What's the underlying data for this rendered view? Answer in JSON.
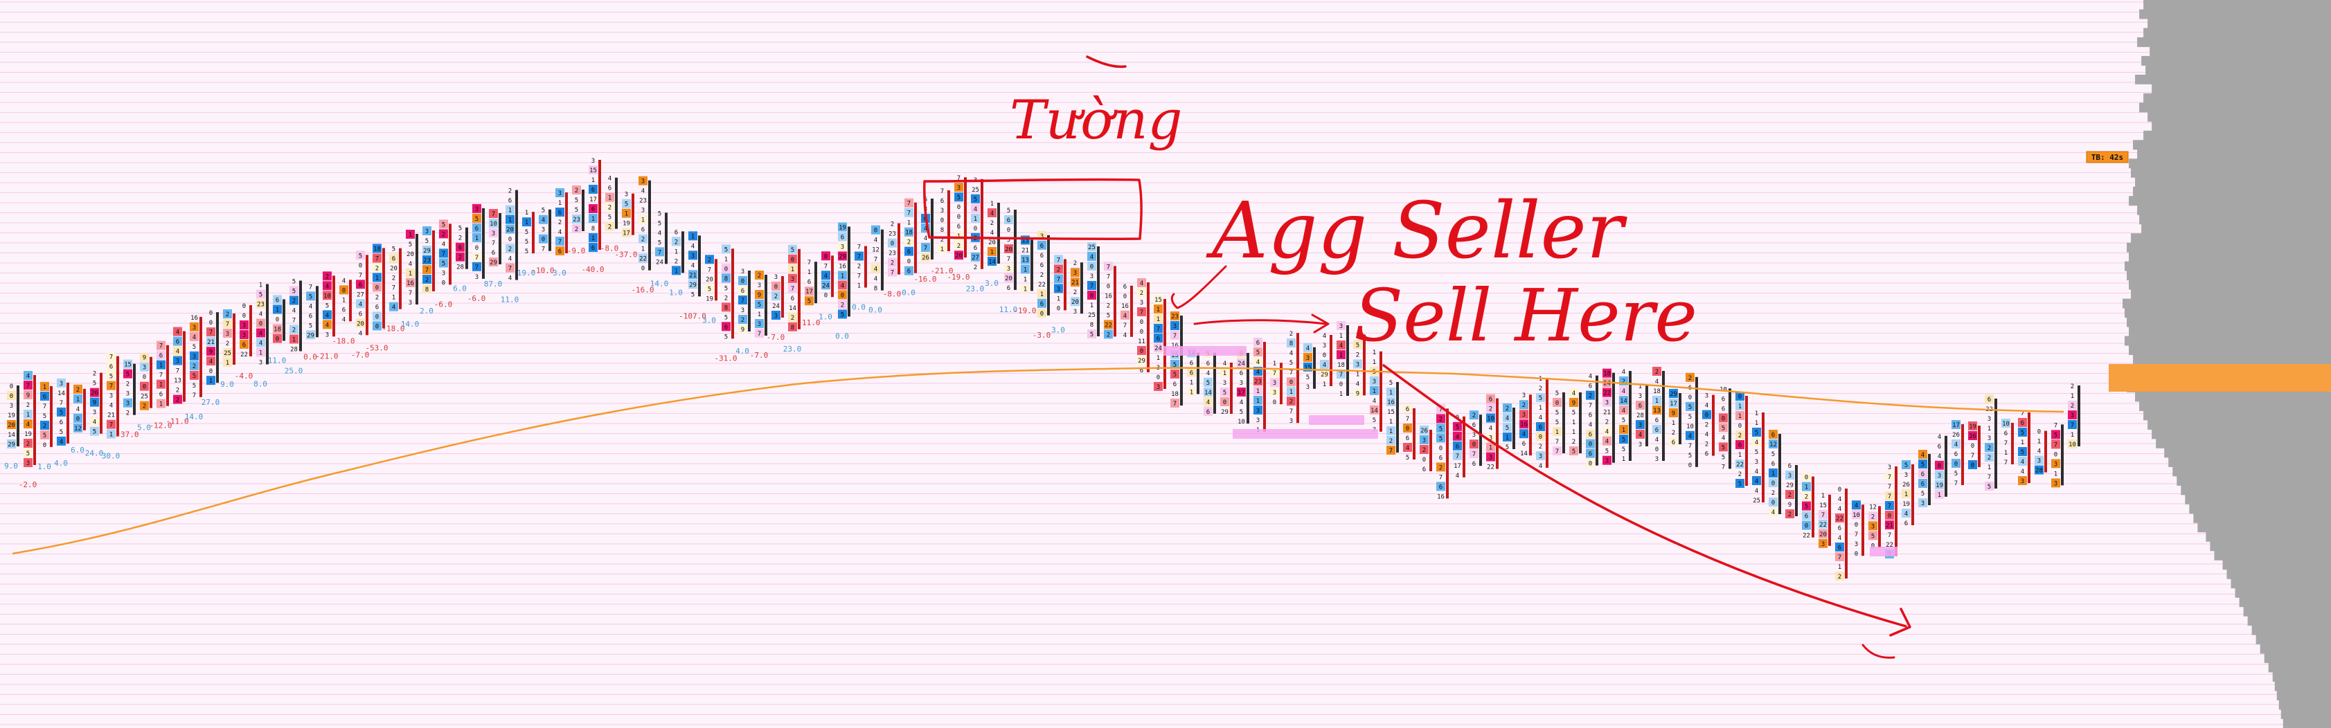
{
  "timer_label": "TB: 42s",
  "colors": {
    "background": "#fdf3fb",
    "gridline": "#f1b8dd",
    "vwap": "#f39a2a",
    "profile": "#a6a6a6",
    "poc": "#f7a040",
    "annotation": "#e0101a",
    "delta_positive": "#3b9bd6",
    "delta_negative": "#d63a3a"
  },
  "annotations": {
    "wall": "Tường",
    "agg_seller": "Agg Seller",
    "sell_here": "Sell Here"
  },
  "chart_data": {
    "type": "footprint",
    "deltas": [
      {
        "v": "9.0",
        "s": "pos"
      },
      {
        "v": "-2.0",
        "s": "neg"
      },
      {
        "v": "1.0",
        "s": "pos"
      },
      {
        "v": "4.0",
        "s": "pos"
      },
      {
        "v": "6.0",
        "s": "pos"
      },
      {
        "v": "24.0",
        "s": "pos"
      },
      {
        "v": "30.0",
        "s": "pos"
      },
      {
        "v": "-37.0",
        "s": "neg"
      },
      {
        "v": "5.0",
        "s": "pos"
      },
      {
        "v": "-12.0",
        "s": "neg"
      },
      {
        "v": "-11.0",
        "s": "neg"
      },
      {
        "v": "14.0",
        "s": "pos"
      },
      {
        "v": "27.0",
        "s": "pos"
      },
      {
        "v": "9.0",
        "s": "pos"
      },
      {
        "v": "-4.0",
        "s": "neg"
      },
      {
        "v": "8.0",
        "s": "pos"
      },
      {
        "v": "11.0",
        "s": "pos"
      },
      {
        "v": "25.0",
        "s": "pos"
      },
      {
        "v": "0.0",
        "s": "neg"
      },
      {
        "v": "-21.0",
        "s": "neg"
      },
      {
        "v": "-18.0",
        "s": "neg"
      },
      {
        "v": "-7.0",
        "s": "neg"
      },
      {
        "v": "-53.0",
        "s": "neg"
      },
      {
        "v": "-18.0",
        "s": "neg"
      },
      {
        "v": "14.0",
        "s": "pos"
      },
      {
        "v": "2.0",
        "s": "pos"
      },
      {
        "v": "-6.0",
        "s": "neg"
      },
      {
        "v": "6.0",
        "s": "pos"
      },
      {
        "v": "-6.0",
        "s": "neg"
      },
      {
        "v": "87.0",
        "s": "pos"
      },
      {
        "v": "11.0",
        "s": "pos"
      },
      {
        "v": "19.0",
        "s": "pos"
      },
      {
        "v": "-10.0",
        "s": "neg"
      },
      {
        "v": "3.0",
        "s": "pos"
      },
      {
        "v": "-9.0",
        "s": "neg"
      },
      {
        "v": "-40.0",
        "s": "neg"
      },
      {
        "v": "-8.0",
        "s": "neg"
      },
      {
        "v": "-37.0",
        "s": "neg"
      },
      {
        "v": "-16.0",
        "s": "neg"
      },
      {
        "v": "14.0",
        "s": "pos"
      },
      {
        "v": "1.0",
        "s": "pos"
      },
      {
        "v": "-107.0",
        "s": "neg"
      },
      {
        "v": "3.0",
        "s": "pos"
      },
      {
        "v": "-31.0",
        "s": "neg"
      },
      {
        "v": "4.0",
        "s": "pos"
      },
      {
        "v": "-7.0",
        "s": "neg"
      },
      {
        "v": "-7.0",
        "s": "neg"
      },
      {
        "v": "23.0",
        "s": "pos"
      },
      {
        "v": "-11.0",
        "s": "neg"
      },
      {
        "v": "1.0",
        "s": "pos"
      },
      {
        "v": "0.0",
        "s": "pos"
      },
      {
        "v": "0.0",
        "s": "pos"
      },
      {
        "v": "0.0",
        "s": "pos"
      },
      {
        "v": "-8.0",
        "s": "neg"
      },
      {
        "v": "0.0",
        "s": "pos"
      },
      {
        "v": "-16.0",
        "s": "neg"
      },
      {
        "v": "-21.0",
        "s": "neg"
      },
      {
        "v": "-19.0",
        "s": "neg"
      },
      {
        "v": "23.0",
        "s": "pos"
      },
      {
        "v": "3.0",
        "s": "pos"
      },
      {
        "v": "11.0",
        "s": "pos"
      },
      {
        "v": "-19.0",
        "s": "neg"
      },
      {
        "v": "-3.0",
        "s": "neg"
      },
      {
        "v": "3.0",
        "s": "pos"
      }
    ],
    "profile_pct": [
      0.9,
      0.92,
      0.88,
      0.9,
      0.93,
      0.87,
      0.91,
      0.89,
      0.94,
      0.86,
      0.9,
      0.92,
      0.88,
      0.86,
      0.9,
      0.95,
      0.93,
      0.97,
      0.96,
      0.94,
      0.95,
      0.97,
      0.93,
      0.92,
      0.91,
      0.96,
      0.98,
      0.97,
      0.99,
      0.98,
      0.97,
      0.96,
      1.0,
      0.99,
      0.98,
      0.97,
      0.99,
      0.97,
      0.95,
      0.96,
      0.97,
      0.98,
      0.94,
      0.92,
      0.9,
      0.88,
      0.86,
      0.84,
      0.8,
      0.78,
      0.76,
      0.74,
      0.72,
      0.7,
      0.68,
      0.66,
      0.64,
      0.6,
      0.58,
      0.56,
      0.52,
      0.5,
      0.48,
      0.46,
      0.44,
      0.42,
      0.4,
      0.38,
      0.36,
      0.34,
      0.32,
      0.3,
      0.28,
      0.27,
      0.26,
      0.25,
      0.24,
      0.23
    ],
    "poc_level": 0.5
  }
}
